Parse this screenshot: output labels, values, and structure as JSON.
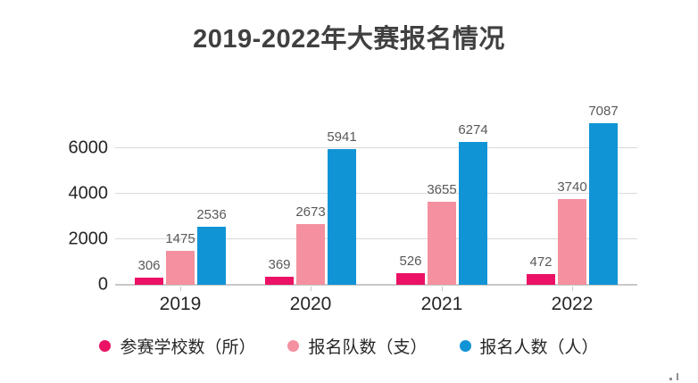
{
  "title": "2019-2022年大赛报名情况",
  "chart_data": {
    "type": "bar",
    "title": "2019-2022年大赛报名情况",
    "categories": [
      "2019",
      "2020",
      "2021",
      "2022"
    ],
    "series": [
      {
        "name": "参赛学校数（所）",
        "color": "#EB1164",
        "values": [
          306,
          369,
          526,
          472
        ]
      },
      {
        "name": "报名队数（支）",
        "color": "#F4909F",
        "values": [
          1475,
          2673,
          3655,
          3740
        ]
      },
      {
        "name": "报名人数（人）",
        "color": "#1094D6",
        "values": [
          2536,
          5941,
          6274,
          7087
        ]
      }
    ],
    "y_ticks": [
      0,
      2000,
      4000,
      6000
    ],
    "ylim": [
      0,
      7400
    ],
    "xlabel": "",
    "ylabel": "",
    "grid": true,
    "value_labels_shown": true,
    "legend_position": "bottom"
  },
  "colors": {
    "background": "#ffffff",
    "gridline": "#d9d9d9",
    "axis_line": "#c8c8c8",
    "title_text": "#404040",
    "axis_text": "#262626",
    "value_label_text": "#595959"
  }
}
